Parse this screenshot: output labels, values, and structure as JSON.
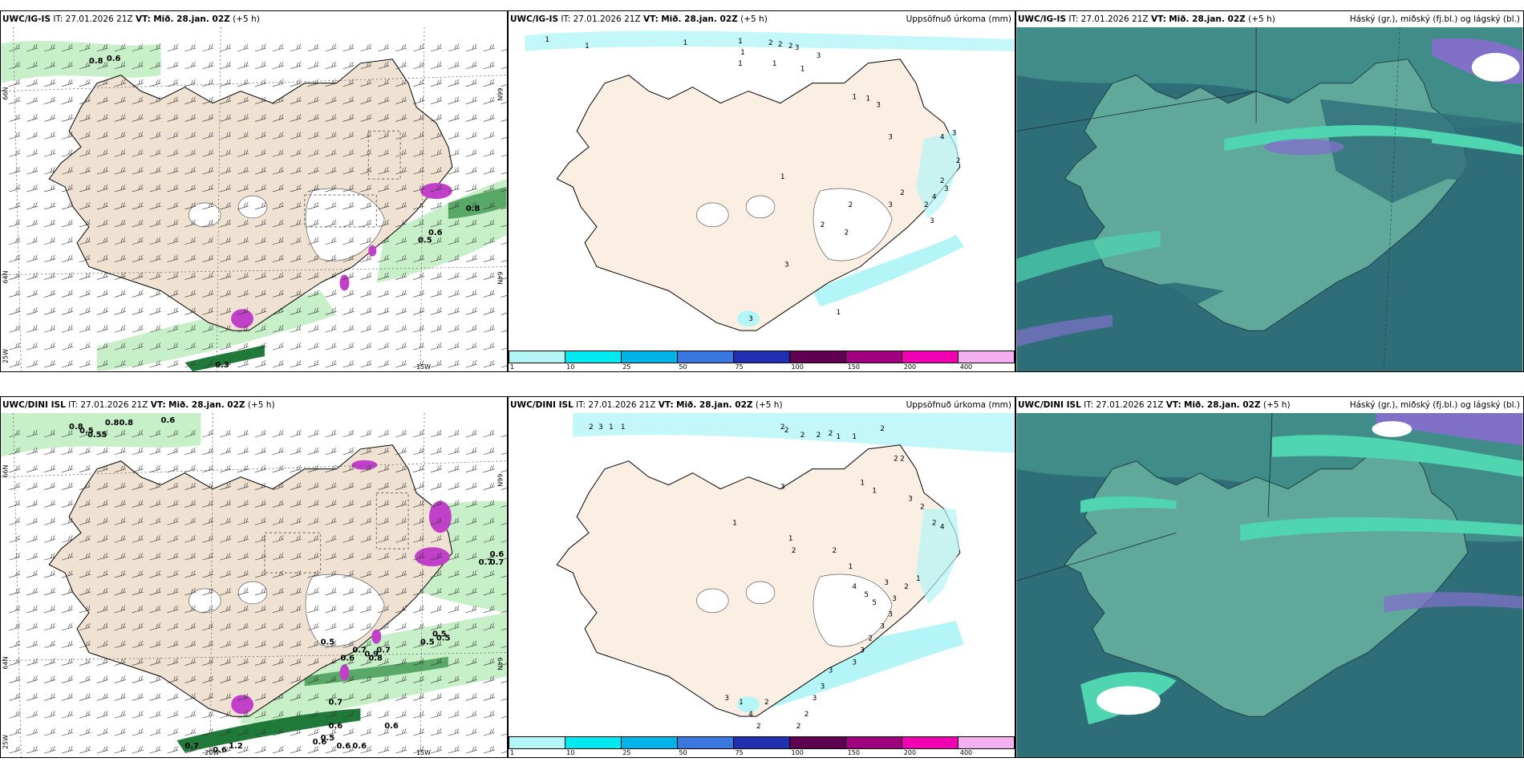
{
  "panels": [
    {
      "id": "r1c1",
      "model": "UWC/IG-IS",
      "it_label": "IT:",
      "it_value": "27.01.2026 21Z",
      "vt_label": "VT:",
      "vt_value": "Mið. 28.jan. 02Z",
      "lead": "(+5 h)",
      "title_right": "",
      "axis_labels": [
        "66N",
        "64N",
        "25W",
        "15W",
        "66N",
        "64N"
      ],
      "contour_labels": [
        "0.8",
        "0.6",
        "0.8",
        "0.6",
        "0.5",
        "0.3"
      ]
    },
    {
      "id": "r1c2",
      "model": "UWC/IG-IS",
      "it_label": "IT:",
      "it_value": "27.01.2026 21Z",
      "vt_label": "VT:",
      "vt_value": "Mið. 28.jan. 02Z",
      "lead": "(+5 h)",
      "title_right": "Uppsöfnuð úrkoma (mm)",
      "precip_labels": [
        "1",
        "1",
        "1",
        "1",
        "1",
        "2",
        "2",
        "2",
        "3",
        "3",
        "1",
        "1",
        "1",
        "1",
        "1",
        "3",
        "3",
        "4",
        "3",
        "2",
        "2",
        "3",
        "4",
        "2",
        "3",
        "3",
        "2",
        "2",
        "1",
        "2",
        "2",
        "3",
        "1",
        "3"
      ]
    },
    {
      "id": "r1c3",
      "model": "UWC/IG-IS",
      "it_label": "IT:",
      "it_value": "27.01.2026 21Z",
      "vt_label": "VT:",
      "vt_value": "Mið. 28.jan. 02Z",
      "lead": "(+5 h)",
      "title_right": "Háský (gr.), miðský (fj.bl.) og lágský (bl.)"
    },
    {
      "id": "r2c1",
      "model": "UWC/DINI ISL",
      "it_label": "IT:",
      "it_value": "27.01.2026 21Z",
      "vt_label": "VT:",
      "vt_value": "Mið. 28.jan. 02Z",
      "lead": "(+5 h)",
      "title_right": "",
      "axis_labels": [
        "66N",
        "64N",
        "25W",
        "20W",
        "15W",
        "66N",
        "64N"
      ],
      "contour_labels": [
        "0.8",
        "0.5",
        "0.55",
        "0.80.8",
        "0.6",
        "0.6",
        "0.7",
        "0.7",
        "0.5",
        "0.7",
        "0.9",
        "0.7",
        "0.6",
        "0.8",
        "0.5",
        "0.5",
        "0.7",
        "0.6",
        "0.6",
        "0.5",
        "0.6",
        "0.6",
        "0.6",
        "1.2",
        "0.6",
        "0.7",
        "0.5"
      ]
    },
    {
      "id": "r2c2",
      "model": "UWC/DINI ISL",
      "it_label": "IT:",
      "it_value": "27.01.2026 21Z",
      "vt_label": "VT:",
      "vt_value": "Mið. 28.jan. 02Z",
      "lead": "(+5 h)",
      "title_right": "Uppsöfnuð úrkoma (mm)",
      "precip_labels": [
        "2",
        "3",
        "1",
        "1",
        "2",
        "2",
        "2",
        "2",
        "2",
        "1",
        "1",
        "2",
        "2",
        "2",
        "1",
        "1",
        "3",
        "2",
        "2",
        "4",
        "3",
        "1",
        "1",
        "2",
        "2",
        "1",
        "4",
        "5",
        "5",
        "3",
        "3",
        "2",
        "1",
        "3",
        "3",
        "2",
        "3",
        "3",
        "3",
        "3",
        "3",
        "2",
        "2",
        "2",
        "1",
        "3",
        "4",
        "2"
      ]
    },
    {
      "id": "r2c3",
      "model": "UWC/DINI ISL",
      "it_label": "IT:",
      "it_value": "27.01.2026 21Z",
      "vt_label": "VT:",
      "vt_value": "Mið. 28.jan. 02Z",
      "lead": "(+5 h)",
      "title_right": "Háský (gr.), miðský (fj.bl.) og lágský (bl.)"
    }
  ],
  "colorbar": {
    "ticks": [
      "1",
      "10",
      "25",
      "50",
      "75",
      "100",
      "150",
      "200",
      "400"
    ],
    "colors": [
      "#b4f5f7",
      "#00e8f0",
      "#00b4e8",
      "#3a78e0",
      "#2030b0",
      "#600050",
      "#a00080",
      "#f000b0",
      "#f4b0f0"
    ]
  },
  "colors": {
    "land": "#efe2d2",
    "land_plain": "#fbefe3",
    "ocean_cloud": "#2e6e78",
    "low_cloud": "#5fa89a",
    "mid_cloud": "#4fd6b0",
    "high_cloud": "#8070c8",
    "precip_light": "#b4f5f7",
    "green_precip": "#c8f0c8",
    "dark_green": "#1f7a3a",
    "magenta": "#c040c8"
  }
}
